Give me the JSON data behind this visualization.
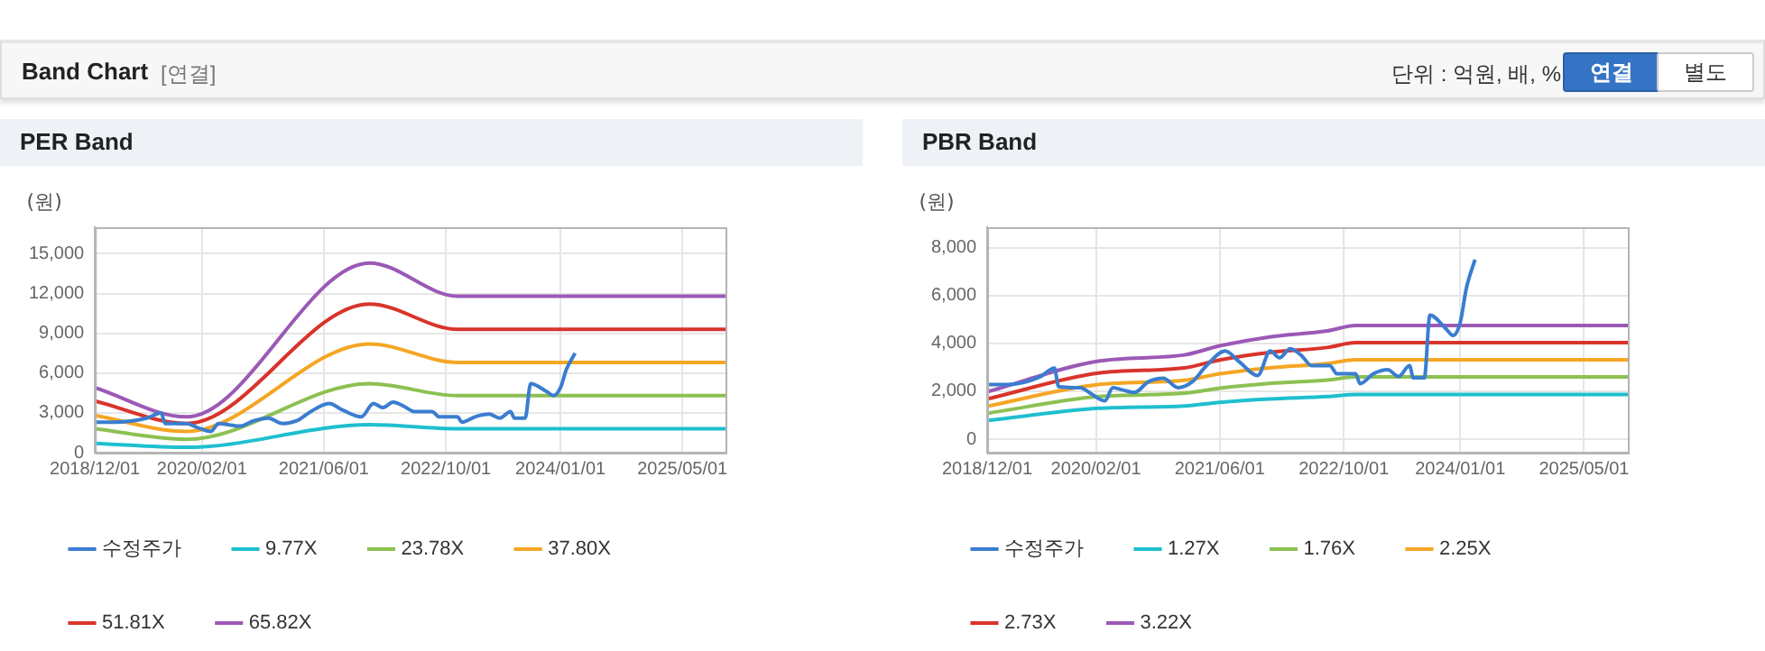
{
  "chart_data": [
    {
      "type": "line",
      "title": "PER Band",
      "ylabel": "(원)",
      "annotations": [
        "Band Chart",
        "[연결]",
        "단위 : 억원, 배, %",
        "연결",
        "별도"
      ],
      "legend": "bottom",
      "grid": true,
      "marker": "none",
      "line_style": "solid",
      "xlim": [
        "2018-12-01",
        "2025-10-20"
      ],
      "xticks": [
        {
          "value": "2018-12-01",
          "label": "2018/12/01"
        },
        {
          "value": "2020-02-01",
          "label": "2020/02/01"
        },
        {
          "value": "2021-06-01",
          "label": "2021/06/01"
        },
        {
          "value": "2022-10-01",
          "label": "2022/10/01"
        },
        {
          "value": "2024-01-01",
          "label": "2024/01/01"
        },
        {
          "value": "2025-05-01",
          "label": "2025/05/01"
        }
      ],
      "ylim": [
        0,
        17000
      ],
      "yticks": [
        {
          "value": 0,
          "label": "0"
        },
        {
          "value": 3000,
          "label": "3,000"
        },
        {
          "value": 6000,
          "label": "6,000"
        },
        {
          "value": 9000,
          "label": "9,000"
        },
        {
          "value": 12000,
          "label": "12,000"
        },
        {
          "value": 15000,
          "label": "15,000"
        }
      ],
      "series": [
        {
          "name": "수정주가",
          "color": "#3a7dd0",
          "x": [
            "2018-12-01",
            "2019-02-19",
            "2019-06-25",
            "2019-08-22",
            "2019-09-07",
            "2019-12-01",
            "2020-01-13",
            "2020-03-07",
            "2020-04-07",
            "2020-05-19",
            "2020-07-01",
            "2020-08-25",
            "2020-10-22",
            "2020-12-19",
            "2021-02-13",
            "2021-04-10",
            "2021-06-22",
            "2021-08-16",
            "2021-10-28",
            "2021-12-16",
            "2022-01-22",
            "2022-03-04",
            "2022-04-16",
            "2022-05-28",
            "2022-08-07",
            "2022-09-04",
            "2022-11-16",
            "2022-12-04",
            "2023-01-25",
            "2023-03-22",
            "2023-05-04",
            "2023-06-16",
            "2023-07-01",
            "2023-08-13",
            "2023-09-04",
            "2023-11-07",
            "2023-12-04",
            "2024-01-01",
            "2024-01-25",
            "2024-02-28"
          ],
          "values": [
            2300,
            2300,
            2600,
            3000,
            2200,
            2200,
            1900,
            1600,
            2200,
            2100,
            2000,
            2400,
            2600,
            2200,
            2400,
            3100,
            3700,
            3200,
            2700,
            3700,
            3400,
            3800,
            3500,
            3100,
            3100,
            2700,
            2700,
            2300,
            2700,
            2900,
            2600,
            3100,
            2600,
            2600,
            5200,
            4600,
            4300,
            4900,
            6300,
            7500
          ]
        },
        {
          "name": "9.77X",
          "color": "#1fbfcf",
          "x": [
            "2018-12-01",
            "2019-12-01",
            "2021-12-01",
            "2022-11-16",
            "2025-10-20"
          ],
          "values": [
            700,
            400,
            2100,
            1800,
            1800
          ]
        },
        {
          "name": "23.78X",
          "color": "#8cc152",
          "x": [
            "2018-12-01",
            "2019-12-01",
            "2021-12-01",
            "2022-11-16",
            "2025-10-20"
          ],
          "values": [
            1800,
            1000,
            5200,
            4300,
            4300
          ]
        },
        {
          "name": "37.80X",
          "color": "#f5a623",
          "x": [
            "2018-12-01",
            "2019-12-01",
            "2021-12-01",
            "2022-11-16",
            "2025-10-20"
          ],
          "values": [
            2800,
            1600,
            8200,
            6800,
            6800
          ]
        },
        {
          "name": "51.81X",
          "color": "#d9342b",
          "x": [
            "2018-12-01",
            "2019-12-01",
            "2021-12-01",
            "2022-11-16",
            "2025-10-20"
          ],
          "values": [
            3900,
            2200,
            11200,
            9300,
            9300
          ]
        },
        {
          "name": "65.82X",
          "color": "#9b59b6",
          "x": [
            "2018-12-01",
            "2019-12-01",
            "2021-12-01",
            "2022-11-16",
            "2025-10-20"
          ],
          "values": [
            4900,
            2700,
            14300,
            11800,
            11800
          ]
        }
      ]
    },
    {
      "type": "line",
      "title": "PBR Band",
      "ylabel": "(원)",
      "legend": "bottom",
      "grid": true,
      "marker": "none",
      "line_style": "solid",
      "xlim": [
        "2018-12-01",
        "2025-10-20"
      ],
      "xticks": [
        {
          "value": "2018-12-01",
          "label": "2018/12/01"
        },
        {
          "value": "2020-02-01",
          "label": "2020/02/01"
        },
        {
          "value": "2021-06-01",
          "label": "2021/06/01"
        },
        {
          "value": "2022-10-01",
          "label": "2022/10/01"
        },
        {
          "value": "2024-01-01",
          "label": "2024/01/01"
        },
        {
          "value": "2025-05-01",
          "label": "2025/05/01"
        }
      ],
      "ylim": [
        -560,
        8850
      ],
      "yticks": [
        {
          "value": 0,
          "label": "0"
        },
        {
          "value": 2000,
          "label": "2,000"
        },
        {
          "value": 4000,
          "label": "4,000"
        },
        {
          "value": 6000,
          "label": "6,000"
        },
        {
          "value": 8000,
          "label": "8,000"
        }
      ],
      "series": [
        {
          "name": "수정주가",
          "color": "#3a7dd0",
          "x": [
            "2018-12-01",
            "2019-02-19",
            "2019-06-25",
            "2019-08-22",
            "2019-09-07",
            "2019-12-01",
            "2020-01-13",
            "2020-03-07",
            "2020-04-07",
            "2020-05-19",
            "2020-07-01",
            "2020-08-25",
            "2020-10-22",
            "2020-12-19",
            "2021-02-13",
            "2021-04-10",
            "2021-06-22",
            "2021-08-16",
            "2021-10-28",
            "2021-12-16",
            "2022-01-22",
            "2022-03-04",
            "2022-04-16",
            "2022-05-28",
            "2022-08-07",
            "2022-09-04",
            "2022-11-16",
            "2022-12-04",
            "2023-01-25",
            "2023-03-22",
            "2023-05-04",
            "2023-06-16",
            "2023-07-01",
            "2023-08-13",
            "2023-09-04",
            "2023-11-07",
            "2023-12-04",
            "2024-01-01",
            "2024-01-25",
            "2024-02-28"
          ],
          "values": [
            2280,
            2280,
            2600,
            2970,
            2200,
            2150,
            1900,
            1600,
            2150,
            2050,
            1950,
            2400,
            2550,
            2150,
            2400,
            3070,
            3680,
            3240,
            2660,
            3680,
            3400,
            3780,
            3510,
            3070,
            3070,
            2730,
            2730,
            2320,
            2730,
            2900,
            2620,
            3070,
            2560,
            2560,
            5180,
            4600,
            4330,
            4880,
            6300,
            7500
          ]
        },
        {
          "name": "1.27X",
          "color": "#1fbfcf",
          "x": [
            "2018-12-01",
            "2020-02-10",
            "2021-01-13",
            "2021-06-01",
            "2021-12-13",
            "2022-07-28",
            "2022-11-16",
            "2025-10-20"
          ],
          "values": [
            780,
            1290,
            1390,
            1540,
            1680,
            1780,
            1870,
            1870
          ]
        },
        {
          "name": "1.76X",
          "color": "#8cc152",
          "x": [
            "2018-12-01",
            "2020-02-10",
            "2021-01-13",
            "2021-06-01",
            "2021-12-13",
            "2022-07-28",
            "2022-11-16",
            "2025-10-20"
          ],
          "values": [
            1080,
            1780,
            1920,
            2130,
            2330,
            2470,
            2600,
            2600
          ]
        },
        {
          "name": "2.25X",
          "color": "#f5a623",
          "x": [
            "2018-12-01",
            "2020-02-10",
            "2021-01-13",
            "2021-06-01",
            "2021-12-13",
            "2022-07-28",
            "2022-11-16",
            "2025-10-20"
          ],
          "values": [
            1380,
            2280,
            2460,
            2730,
            2980,
            3160,
            3320,
            3320
          ]
        },
        {
          "name": "2.73X",
          "color": "#d9342b",
          "x": [
            "2018-12-01",
            "2020-02-10",
            "2021-01-13",
            "2021-06-01",
            "2021-12-13",
            "2022-07-28",
            "2022-11-16",
            "2025-10-20"
          ],
          "values": [
            1680,
            2760,
            2980,
            3310,
            3620,
            3830,
            4030,
            4030
          ]
        },
        {
          "name": "3.22X",
          "color": "#9b59b6",
          "x": [
            "2018-12-01",
            "2020-02-10",
            "2021-01-13",
            "2021-06-01",
            "2021-12-13",
            "2022-07-28",
            "2022-11-16",
            "2025-10-20"
          ],
          "values": [
            1980,
            3260,
            3520,
            3900,
            4270,
            4520,
            4750,
            4750
          ]
        }
      ]
    }
  ]
}
